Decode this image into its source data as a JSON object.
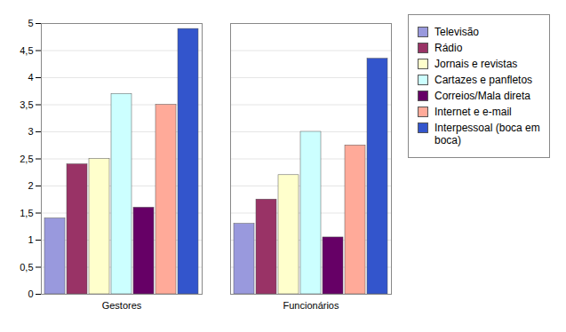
{
  "chart_data": {
    "type": "bar",
    "categories": [
      "Gestores",
      "Funcionários"
    ],
    "series": [
      {
        "name": "Televisão",
        "color": "#9999dd",
        "values": [
          1.4,
          1.3
        ]
      },
      {
        "name": "Rádio",
        "color": "#993366",
        "values": [
          2.4,
          1.75
        ]
      },
      {
        "name": "Jornais e revistas",
        "color": "#ffffcc",
        "values": [
          2.5,
          2.2
        ]
      },
      {
        "name": "Cartazes e panfletos",
        "color": "#ccffff",
        "values": [
          3.7,
          3.0
        ]
      },
      {
        "name": "Correios/Mala direta",
        "color": "#660066",
        "values": [
          1.6,
          1.05
        ]
      },
      {
        "name": "Internet e e-mail",
        "color": "#ffaa99",
        "values": [
          3.5,
          2.75
        ]
      },
      {
        "name": "Interpessoal (boca em\nboca)",
        "color": "#3355cc",
        "values": [
          4.9,
          4.35
        ]
      }
    ],
    "ylim": [
      0,
      5
    ],
    "yticks": [
      0,
      {
        "value": 0.5,
        "label": "0,5"
      },
      1,
      {
        "value": 1.5,
        "label": "1,5"
      },
      2,
      {
        "value": 2.5,
        "label": "2,5"
      },
      3,
      {
        "value": 3.5,
        "label": "3,5"
      },
      4,
      {
        "value": 4.5,
        "label": "4,5"
      },
      5
    ],
    "grid": true,
    "legend": "right"
  }
}
